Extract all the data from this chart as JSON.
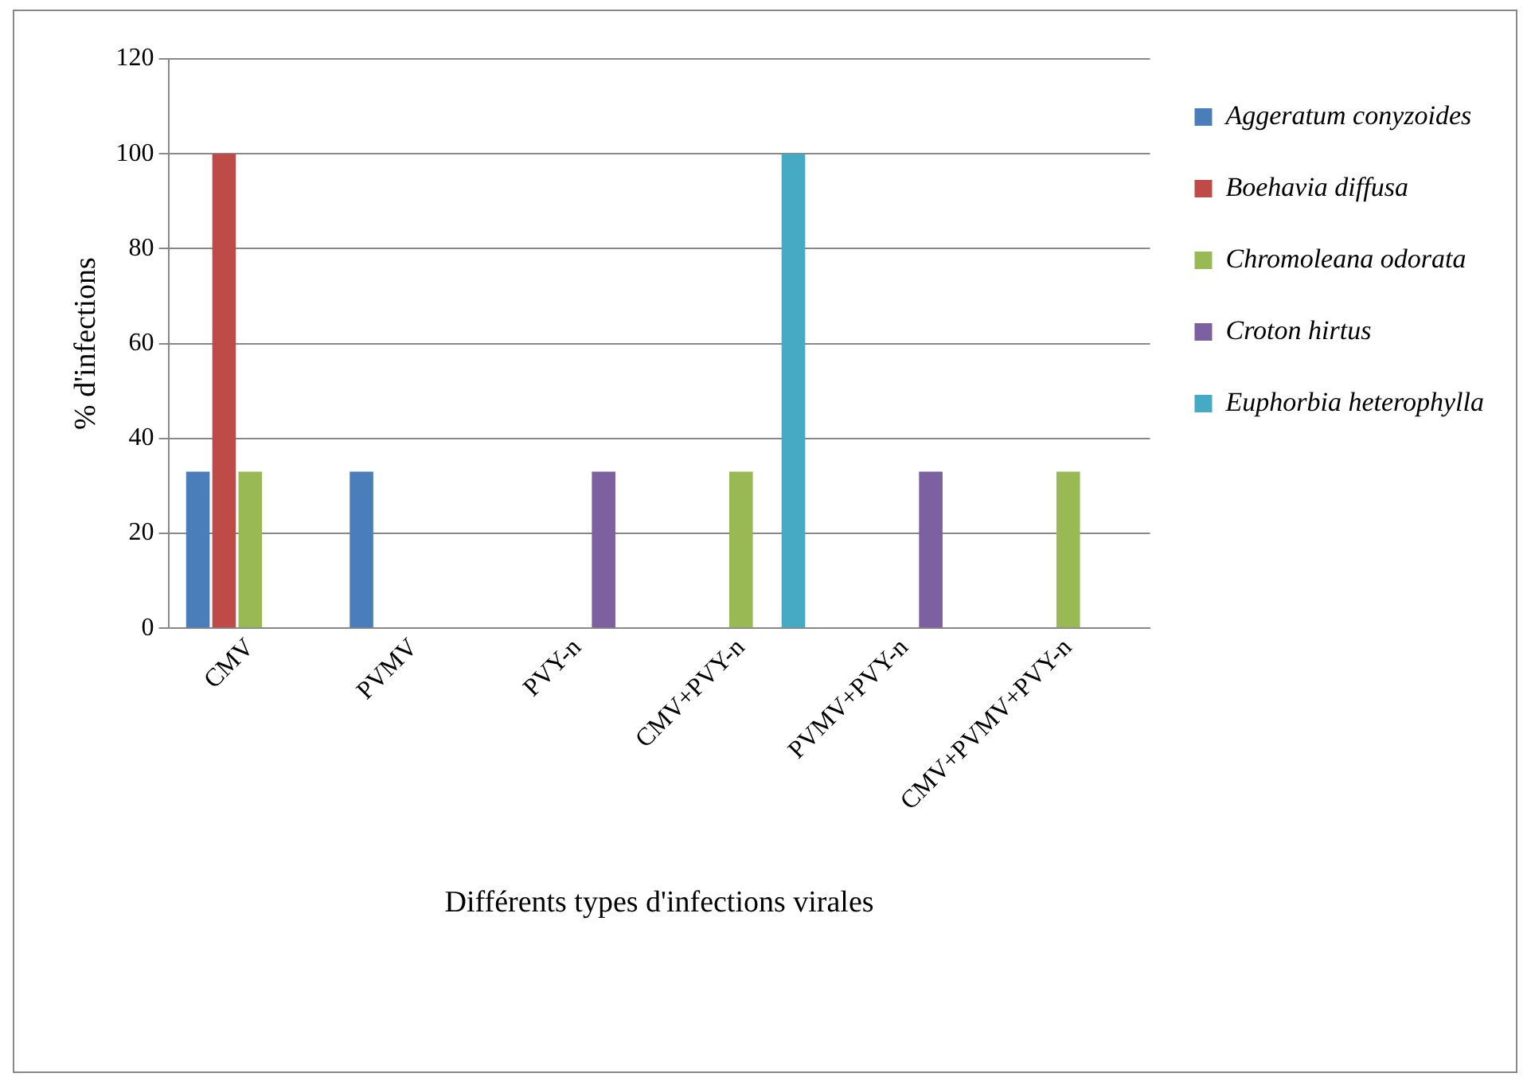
{
  "chart_data": {
    "type": "bar",
    "xlabel": "Différents types d'infections virales",
    "ylabel": "% d'infections",
    "categories": [
      "CMV",
      "PVMV",
      "PVY-n",
      "CMV+PVY-n",
      "PVMV+PVY-n",
      "CMV+PVMV+PVY-n"
    ],
    "series": [
      {
        "name": "Aggeratum conyzoides",
        "color": "#4a7ebb",
        "values": [
          33,
          33,
          0,
          0,
          0,
          0
        ]
      },
      {
        "name": "Boehavia diffusa",
        "color": "#be4b48",
        "values": [
          100,
          0,
          0,
          0,
          0,
          0
        ]
      },
      {
        "name": "Chromoleana odorata",
        "color": "#98b954",
        "values": [
          33,
          0,
          0,
          33,
          0,
          33
        ]
      },
      {
        "name": "Croton hirtus",
        "color": "#7d60a0",
        "values": [
          0,
          0,
          33,
          0,
          33,
          0
        ]
      },
      {
        "name": "Euphorbia heterophylla",
        "color": "#46aac5",
        "values": [
          0,
          0,
          0,
          100,
          0,
          0
        ]
      }
    ],
    "ylim": [
      0,
      120
    ],
    "yticks": [
      0,
      20,
      40,
      60,
      80,
      100,
      120
    ],
    "grid": "y",
    "legend": "right"
  }
}
